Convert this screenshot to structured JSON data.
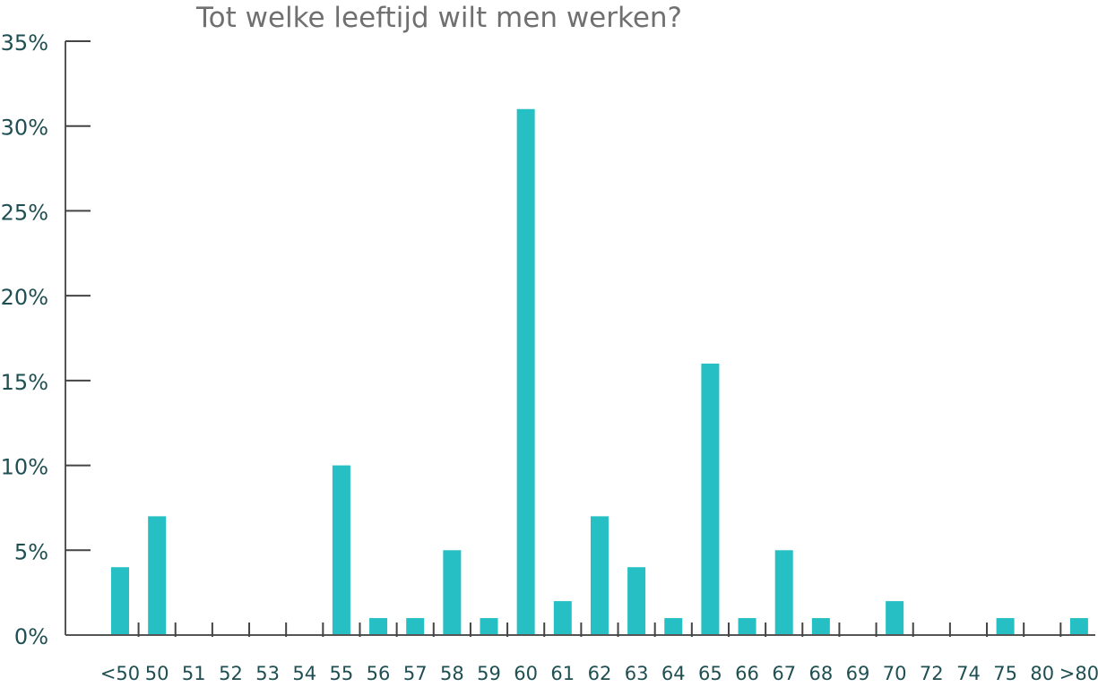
{
  "chart_data": {
    "type": "bar",
    "title": "Tot welke leeftijd wilt men werken?",
    "xlabel": "",
    "ylabel": "",
    "categories": [
      "<50",
      "50",
      "51",
      "52",
      "53",
      "54",
      "55",
      "56",
      "57",
      "58",
      "59",
      "60",
      "61",
      "62",
      "63",
      "64",
      "65",
      "66",
      "67",
      "68",
      "69",
      "70",
      "72",
      "74",
      "75",
      "80",
      ">80"
    ],
    "values": [
      4,
      7,
      0,
      0,
      0,
      0,
      10,
      1,
      1,
      5,
      1,
      31,
      2,
      7,
      4,
      1,
      16,
      1,
      5,
      1,
      0,
      2,
      0,
      0,
      1,
      0,
      1
    ],
    "y_unit": "%",
    "y_ticks": [
      "0%",
      "5%",
      "10%",
      "15%",
      "20%",
      "25%",
      "30%",
      "35%"
    ],
    "ylim": [
      0,
      35
    ],
    "grid": false,
    "legend": "none",
    "bar_color": "#26bfc3"
  }
}
